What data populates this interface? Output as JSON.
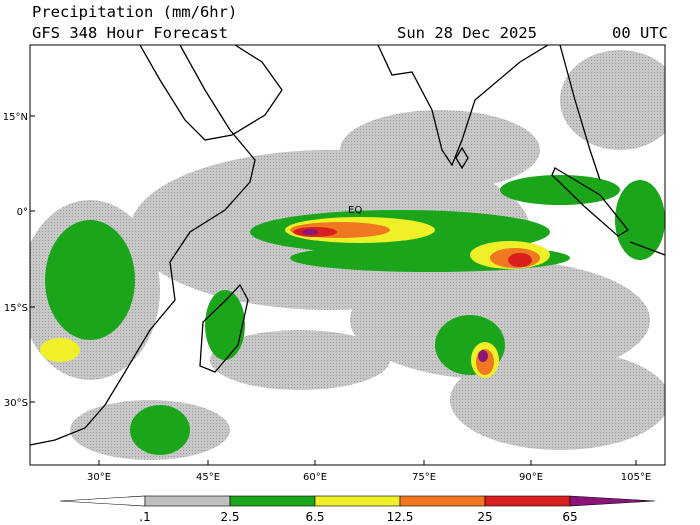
{
  "header": {
    "title": "Precipitation (mm/6hr)",
    "subtitle": "GFS 348 Hour Forecast",
    "date": "Sun 28 Dec 2025",
    "time": "00 UTC"
  },
  "axes": {
    "lat_labels": [
      "15°N",
      "0°",
      "15°S",
      "30°S"
    ],
    "lon_labels": [
      "30°E",
      "45°E",
      "60°E",
      "75°E",
      "90°E",
      "105°E"
    ]
  },
  "map": {
    "labels": [
      "EQ"
    ]
  },
  "legend": {
    "labels": [
      ".1",
      "2.5",
      "6.5",
      "12.5",
      "25",
      "65"
    ]
  }
}
